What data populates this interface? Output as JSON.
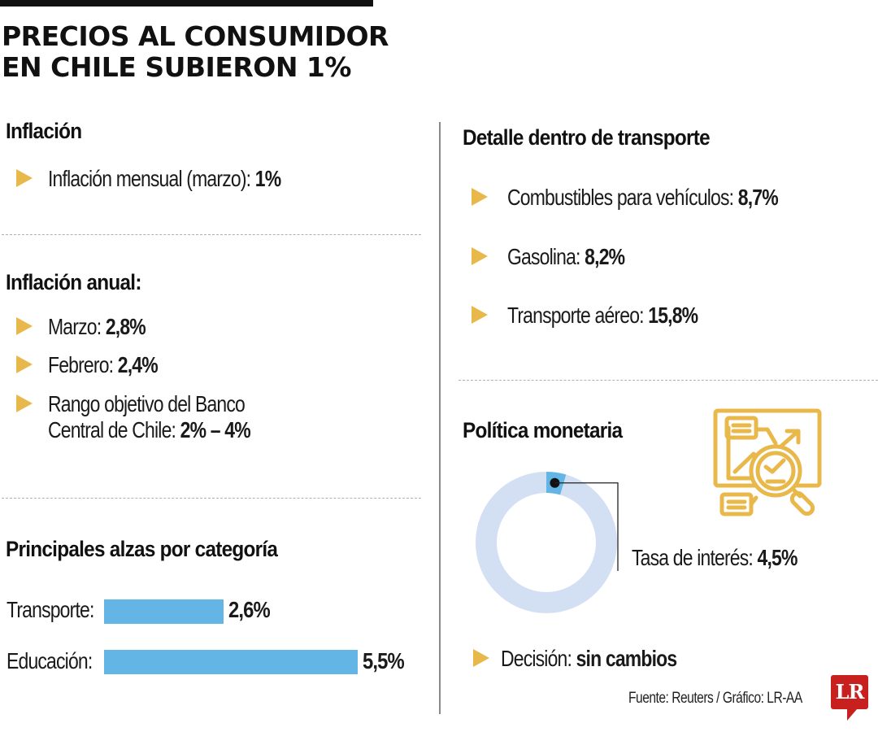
{
  "header": {
    "title_line1": "PRECIOS AL CONSUMIDOR",
    "title_line2": "EN CHILE SUBIERON 1%"
  },
  "colors": {
    "bullet": "#e8b94a",
    "bar": "#63b5e6",
    "donut_track": "#d3dff3",
    "donut_highlight": "#63b5e6",
    "logo_red": "#c8201f",
    "icon_gold": "#e8b94a"
  },
  "inflacion": {
    "heading": "Inflación",
    "items": [
      {
        "label": "Inflación mensual (marzo): ",
        "value": "1%"
      }
    ]
  },
  "inflacion_anual": {
    "heading": "Inflación anual:",
    "items": [
      {
        "label": "Marzo: ",
        "value": "2,8%"
      },
      {
        "label": "Febrero: ",
        "value": "2,4%"
      },
      {
        "label_line1": "Rango objetivo del Banco",
        "label_line2": "Central de Chile: ",
        "value": "2% – 4%"
      }
    ]
  },
  "transporte": {
    "heading": "Detalle dentro de transporte",
    "items": [
      {
        "label": "Combustibles para vehículos: ",
        "value": "8,7%"
      },
      {
        "label": "Gasolina: ",
        "value": "8,2%"
      },
      {
        "label": "Transporte aéreo: ",
        "value": "15,8%"
      }
    ]
  },
  "politica": {
    "heading": "Política monetaria",
    "rate_label": "Tasa de interés: ",
    "rate_value": "4,5%",
    "decision_label": "Decisión: ",
    "decision_value": "sin cambios",
    "icon": "market-analysis-magnifier-icon"
  },
  "chart_data": [
    {
      "type": "bar",
      "title": "Principales alzas por categoría",
      "categories": [
        "Transporte:",
        "Educación:"
      ],
      "values": [
        2.6,
        5.5
      ],
      "value_labels": [
        "2,6%",
        "5,5%"
      ],
      "xlabel": "",
      "ylabel": "",
      "orientation": "horizontal",
      "xlim": [
        0,
        5.5
      ]
    },
    {
      "type": "pie",
      "title": "Tasa de interés",
      "style": "donut",
      "values": [
        4.5,
        95.5
      ],
      "labels": [
        "Tasa de interés",
        ""
      ],
      "value_labels": [
        "4,5%",
        ""
      ]
    }
  ],
  "footer": {
    "source": "Fuente: Reuters / Gráfico: LR-AA",
    "logo_text": "LR"
  }
}
